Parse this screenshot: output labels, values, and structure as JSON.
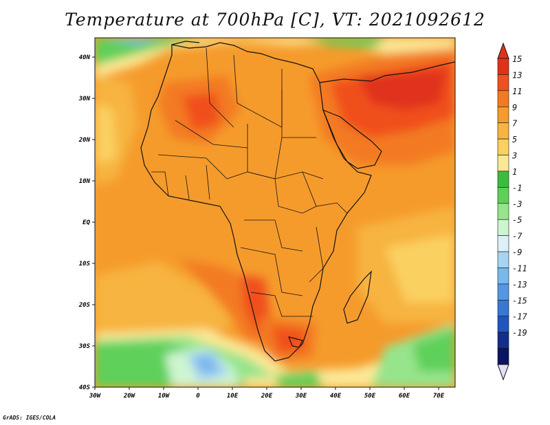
{
  "title": "Temperature at 700hPa [C], VT: 2021092612",
  "credit": "GrADS: IGES/COLA",
  "map": {
    "lon_ticks": [
      "30W",
      "20W",
      "10W",
      "0",
      "10E",
      "20E",
      "30E",
      "40E",
      "50E",
      "60E",
      "70E"
    ],
    "lat_ticks": [
      "40N",
      "30N",
      "20N",
      "10N",
      "EQ",
      "10S",
      "20S",
      "30S",
      "40S"
    ]
  },
  "colorbar": {
    "labels": [
      "15",
      "13",
      "11",
      "9",
      "7",
      "5",
      "3",
      "1",
      "-1",
      "-3",
      "-5",
      "-7",
      "-9",
      "-11",
      "-13",
      "-15",
      "-17",
      "-19"
    ],
    "colors": [
      "#e0321a",
      "#f0501e",
      "#f37a22",
      "#f59b2c",
      "#f7b440",
      "#fad060",
      "#fbe896",
      "#3cbc3c",
      "#5ed05a",
      "#96e48c",
      "#cdf5d0",
      "#dcf0fa",
      "#a7d4f2",
      "#7ab8ec",
      "#5496e0",
      "#3878d2",
      "#2055bf",
      "#142e8c",
      "#0c1464"
    ]
  }
}
